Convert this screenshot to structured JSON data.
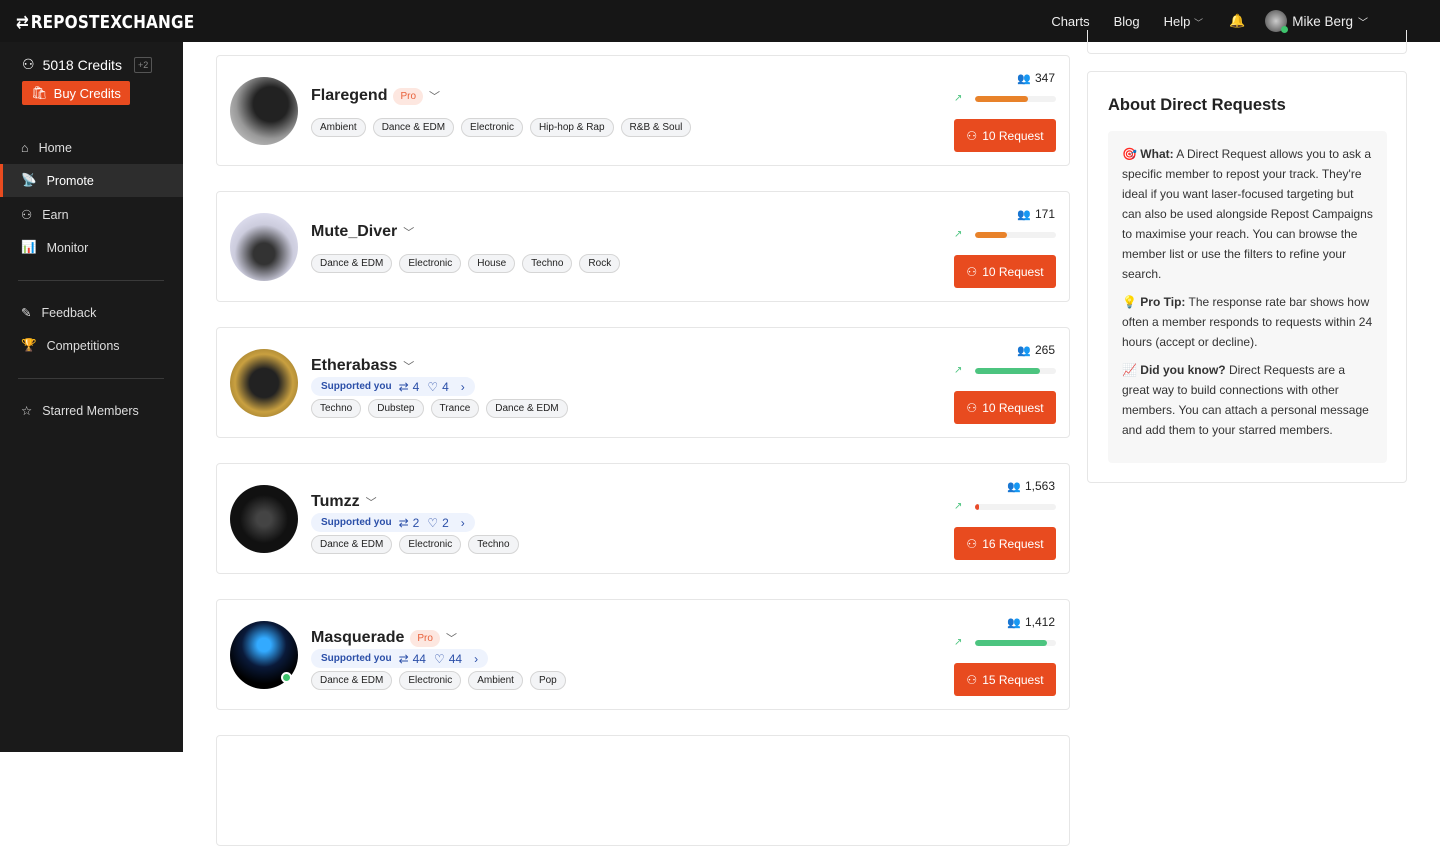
{
  "header": {
    "logo": "REPOSTEXCHANGE",
    "nav": [
      {
        "label": "Charts"
      },
      {
        "label": "Blog"
      },
      {
        "label": "Help"
      }
    ],
    "user_name": "Mike Berg"
  },
  "sidebar": {
    "credits": "5018 Credits",
    "credits_delta": "+2",
    "buy_label": "Buy Credits",
    "items": [
      {
        "label": "Home",
        "icon": "home-icon"
      },
      {
        "label": "Promote",
        "icon": "broadcast-icon",
        "active": true
      },
      {
        "label": "Earn",
        "icon": "coins-icon"
      },
      {
        "label": "Monitor",
        "icon": "bar-chart-icon"
      },
      {
        "label": "Feedback",
        "icon": "pencil-icon"
      },
      {
        "label": "Competitions",
        "icon": "trophy-icon"
      },
      {
        "label": "Starred Members",
        "icon": "star-icon"
      }
    ]
  },
  "colors": {
    "accent": "#e84b1f",
    "bar_orange": "#e8822a",
    "bar_green": "#4cc47f",
    "bar_red": "#e84b2a"
  },
  "members": [
    {
      "name": "Flaregend",
      "pro": "Pro",
      "followers": "347",
      "response_rate": 0.65,
      "bar_color": "#e8822a",
      "request": "10 Request",
      "tags": [
        "Ambient",
        "Dance & EDM",
        "Electronic",
        "Hip-hop & Rap",
        "R&B & Soul"
      ]
    },
    {
      "name": "Mute_Diver",
      "followers": "171",
      "response_rate": 0.4,
      "bar_color": "#e8822a",
      "request": "10 Request",
      "tags": [
        "Dance & EDM",
        "Electronic",
        "House",
        "Techno",
        "Rock"
      ]
    },
    {
      "name": "Etherabass",
      "supported": {
        "label": "Supported you",
        "reposts": "4",
        "likes": "4"
      },
      "followers": "265",
      "response_rate": 0.8,
      "bar_color": "#4cc47f",
      "request": "10 Request",
      "tags": [
        "Techno",
        "Dubstep",
        "Trance",
        "Dance & EDM"
      ]
    },
    {
      "name": "Tumzz",
      "supported": {
        "label": "Supported you",
        "reposts": "2",
        "likes": "2"
      },
      "followers": "1,563",
      "response_rate": 0.05,
      "bar_color": "#e84b2a",
      "request": "16 Request",
      "tags": [
        "Dance & EDM",
        "Electronic",
        "Techno"
      ]
    },
    {
      "name": "Masquerade",
      "pro": "Pro",
      "online": true,
      "supported": {
        "label": "Supported you",
        "reposts": "44",
        "likes": "44"
      },
      "followers": "1,412",
      "response_rate": 0.89,
      "bar_color": "#4cc47f",
      "request": "15 Request",
      "tags": [
        "Dance & EDM",
        "Electronic",
        "Ambient",
        "Pop"
      ]
    }
  ],
  "about": {
    "title": "About Direct Requests",
    "what_label": "What:",
    "what": " A Direct Request allows you to ask a specific member to repost your track. They're ideal if you want laser-focused targeting but can also be used alongside Repost Campaigns to maximise your reach. You can browse the member list or use the filters to refine your search.",
    "tip_label": "Pro Tip:",
    "tip": " The response rate bar shows how often a member responds to requests within 24 hours (accept or decline).",
    "know_label": "Did you know?",
    "know": " Direct Requests are a great way to build connections with other members. You can attach a personal message and add them to your starred members."
  }
}
